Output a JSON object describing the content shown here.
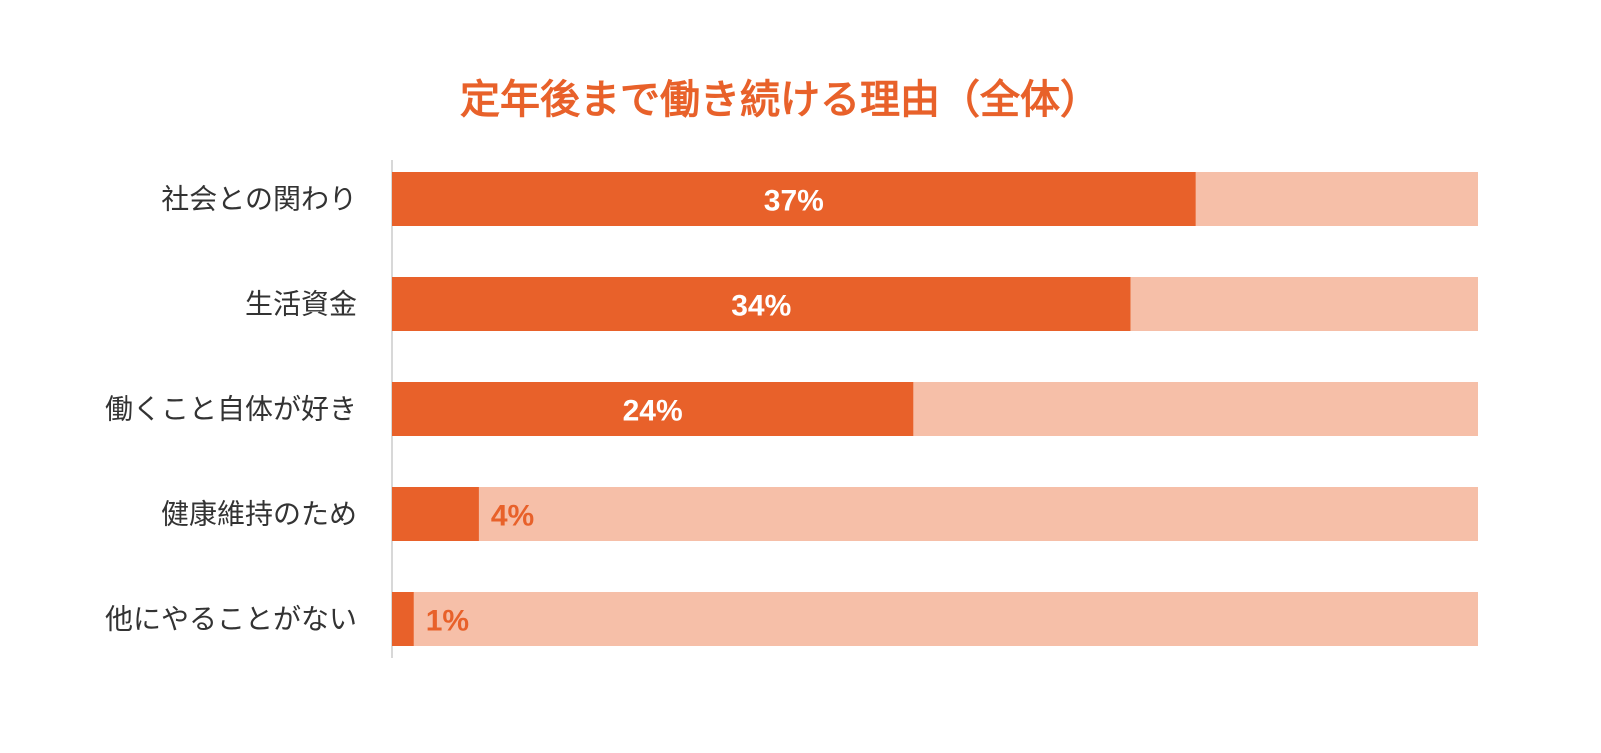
{
  "chart_data": {
    "type": "bar",
    "orientation": "horizontal",
    "title": "定年後まで働き続ける理由（全体）",
    "categories": [
      "社会との関わり",
      "生活資金",
      "働くこと自体が好き",
      "健康維持のため",
      "他にやることがない"
    ],
    "values": [
      37,
      34,
      24,
      4,
      1
    ],
    "value_labels": [
      "37%",
      "34%",
      "24%",
      "4%",
      "1%"
    ],
    "xlim": [
      0,
      50
    ],
    "color": "#e8612a",
    "track_color": "#f6bfa8",
    "inside_label_color": "#ffffff"
  }
}
